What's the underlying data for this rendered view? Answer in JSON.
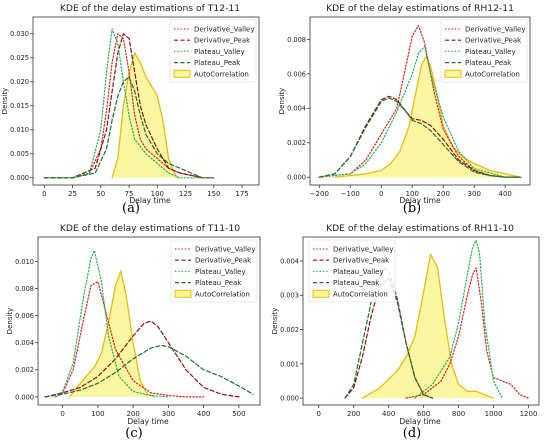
{
  "figure_labels": [
    "(a)",
    "(b)",
    "(c)",
    "(d)"
  ],
  "colors": {
    "derivative_valley": "#e31a1c",
    "derivative_peak": "#8b1010",
    "plateau_valley": "#22b14c",
    "plateau_peak": "#1f6e2c",
    "autocorrelation": "#e8bc14",
    "autocorrelation_fill": "#fbf597"
  },
  "chart_data": [
    {
      "type": "area",
      "title": "KDE of the delay estimations of T12-11",
      "xlabel": "Delay time",
      "ylabel": "Density",
      "xlim": [
        -10,
        190
      ],
      "ylim": [
        -0.0015,
        0.0335
      ],
      "xticks": [
        0,
        25,
        50,
        75,
        100,
        125,
        150,
        175
      ],
      "yticks": [
        0.0,
        0.005,
        0.01,
        0.015,
        0.02,
        0.025,
        0.03
      ],
      "ytick_labels": [
        "0.000",
        "0.005",
        "0.010",
        "0.015",
        "0.020",
        "0.025",
        "0.030"
      ],
      "legend": "top-right",
      "series": [
        {
          "name": "Derivative_Valley",
          "style": "dotted",
          "color": "#e31a1c",
          "x": [
            0,
            25,
            40,
            50,
            55,
            60,
            65,
            70,
            75,
            80,
            85,
            90,
            100,
            110,
            120,
            140,
            150
          ],
          "y": [
            0,
            0,
            0.001,
            0.006,
            0.014,
            0.024,
            0.03,
            0.029,
            0.022,
            0.013,
            0.008,
            0.006,
            0.004,
            0.002,
            0.001,
            0,
            0
          ]
        },
        {
          "name": "Derivative_Peak",
          "style": "dashed",
          "color": "#8b1010",
          "x": [
            0,
            25,
            45,
            55,
            60,
            65,
            70,
            75,
            80,
            85,
            90,
            100,
            110,
            120,
            140
          ],
          "y": [
            0,
            0,
            0.002,
            0.01,
            0.018,
            0.026,
            0.03,
            0.029,
            0.022,
            0.015,
            0.011,
            0.006,
            0.002,
            0.001,
            0
          ]
        },
        {
          "name": "Plateau_Valley",
          "style": "dotted",
          "color": "#22b14c",
          "x": [
            0,
            25,
            40,
            50,
            55,
            60,
            65,
            70,
            75,
            80,
            90,
            100,
            110,
            120,
            140
          ],
          "y": [
            0,
            0,
            0.001,
            0.01,
            0.022,
            0.031,
            0.028,
            0.02,
            0.013,
            0.008,
            0.005,
            0.003,
            0.001,
            0,
            0
          ]
        },
        {
          "name": "Plateau_Peak",
          "style": "dashed",
          "color": "#1f6e2c",
          "x": [
            0,
            25,
            45,
            55,
            60,
            65,
            70,
            75,
            80,
            85,
            90,
            100,
            110,
            120,
            130,
            140,
            150
          ],
          "y": [
            0,
            0,
            0.001,
            0.006,
            0.012,
            0.017,
            0.02,
            0.021,
            0.018,
            0.013,
            0.009,
            0.005,
            0.003,
            0.002,
            0.001,
            0,
            0
          ]
        },
        {
          "name": "AutoCorrelation",
          "style": "solid",
          "fill": true,
          "color": "#e8bc14",
          "x": [
            60,
            65,
            70,
            75,
            80,
            85,
            90,
            95,
            100,
            105,
            110,
            115,
            118
          ],
          "y": [
            0,
            0.004,
            0.015,
            0.022,
            0.026,
            0.024,
            0.021,
            0.019,
            0.017,
            0.012,
            0.004,
            0.001,
            0
          ]
        }
      ]
    },
    {
      "type": "area",
      "title": "KDE of the delay estimations of RH12-11",
      "xlabel": "Delay time",
      "ylabel": "Density",
      "xlim": [
        -230,
        480
      ],
      "ylim": [
        -0.00045,
        0.0093
      ],
      "xticks": [
        -200,
        -100,
        0,
        100,
        200,
        300,
        400
      ],
      "yticks": [
        0.0,
        0.002,
        0.004,
        0.006,
        0.008
      ],
      "ytick_labels": [
        "0.000",
        "0.002",
        "0.004",
        "0.006",
        "0.008"
      ],
      "legend": "top-right",
      "series": [
        {
          "name": "Derivative_Valley",
          "style": "dotted",
          "color": "#e31a1c",
          "x": [
            -200,
            -100,
            -50,
            0,
            50,
            80,
            100,
            120,
            140,
            170,
            200,
            250,
            300,
            350,
            400,
            450
          ],
          "y": [
            0,
            0.0002,
            0.001,
            0.0025,
            0.004,
            0.0065,
            0.0082,
            0.0088,
            0.0078,
            0.005,
            0.0028,
            0.0012,
            0.0004,
            0.0001,
            0,
            0
          ]
        },
        {
          "name": "Derivative_Peak",
          "style": "dashed",
          "color": "#8b1010",
          "x": [
            -200,
            -150,
            -100,
            -50,
            0,
            25,
            50,
            80,
            100,
            130,
            160,
            200,
            250,
            300,
            350,
            400,
            450
          ],
          "y": [
            0,
            0.0002,
            0.0012,
            0.003,
            0.0045,
            0.0047,
            0.0045,
            0.0038,
            0.0034,
            0.0033,
            0.003,
            0.0022,
            0.001,
            0.0004,
            0.0001,
            0,
            0
          ]
        },
        {
          "name": "Plateau_Valley",
          "style": "dotted",
          "color": "#22b14c",
          "x": [
            -200,
            -100,
            -50,
            0,
            50,
            100,
            120,
            140,
            160,
            200,
            250,
            300,
            400,
            450
          ],
          "y": [
            0,
            0.0002,
            0.0008,
            0.002,
            0.0038,
            0.006,
            0.0072,
            0.0076,
            0.006,
            0.0035,
            0.0015,
            0.0005,
            0,
            0
          ]
        },
        {
          "name": "Plateau_Peak",
          "style": "dashed",
          "color": "#1f6e2c",
          "x": [
            -200,
            -150,
            -100,
            -50,
            0,
            25,
            50,
            80,
            100,
            130,
            160,
            200,
            250,
            300,
            350,
            400,
            450
          ],
          "y": [
            0,
            0.0002,
            0.0012,
            0.0029,
            0.0044,
            0.0046,
            0.0044,
            0.0038,
            0.0033,
            0.0031,
            0.0027,
            0.0019,
            0.0009,
            0.0003,
            0.0001,
            0,
            0
          ]
        },
        {
          "name": "AutoCorrelation",
          "style": "solid",
          "fill": true,
          "color": "#e8bc14",
          "x": [
            -150,
            -100,
            -50,
            0,
            30,
            60,
            90,
            110,
            130,
            145,
            160,
            180,
            200,
            230,
            260,
            300,
            350,
            400,
            450
          ],
          "y": [
            0,
            0.0001,
            0.0002,
            0.0004,
            0.0008,
            0.0015,
            0.003,
            0.0048,
            0.0065,
            0.007,
            0.0064,
            0.0048,
            0.003,
            0.0018,
            0.0012,
            0.0008,
            0.0004,
            0.0002,
            0
          ]
        }
      ]
    },
    {
      "type": "area",
      "title": "KDE of the delay estimations of T11-10",
      "xlabel": "Delay time",
      "ylabel": "Density",
      "xlim": [
        -70,
        560
      ],
      "ylim": [
        -0.0006,
        0.0118
      ],
      "xticks": [
        0,
        100,
        200,
        300,
        400,
        500
      ],
      "yticks": [
        0.0,
        0.002,
        0.004,
        0.006,
        0.008,
        0.01
      ],
      "ytick_labels": [
        "0.000",
        "0.002",
        "0.004",
        "0.006",
        "0.008",
        "0.010"
      ],
      "legend": "top-right",
      "series": [
        {
          "name": "Derivative_Valley",
          "style": "dotted",
          "color": "#e31a1c",
          "x": [
            -20,
            0,
            30,
            60,
            80,
            100,
            120,
            150,
            200,
            250,
            300,
            350,
            400
          ],
          "y": [
            0,
            0.0003,
            0.002,
            0.0058,
            0.0082,
            0.0085,
            0.0065,
            0.0035,
            0.0012,
            0.0003,
            0.0001,
            0,
            0
          ]
        },
        {
          "name": "Derivative_Peak",
          "style": "dashed",
          "color": "#8b1010",
          "x": [
            -50,
            0,
            50,
            100,
            150,
            200,
            230,
            250,
            270,
            300,
            350,
            400,
            450,
            500
          ],
          "y": [
            0,
            0.0003,
            0.0007,
            0.0015,
            0.0028,
            0.0045,
            0.0054,
            0.0056,
            0.0052,
            0.004,
            0.002,
            0.0007,
            0.0002,
            0
          ]
        },
        {
          "name": "Plateau_Valley",
          "style": "dotted",
          "color": "#22b14c",
          "x": [
            -20,
            0,
            30,
            60,
            80,
            90,
            110,
            130,
            160,
            200,
            250,
            300
          ],
          "y": [
            0,
            0.0004,
            0.0025,
            0.0075,
            0.0102,
            0.0108,
            0.0085,
            0.0045,
            0.0015,
            0.0004,
            0.0001,
            0
          ]
        },
        {
          "name": "Plateau_Peak",
          "style": "dashed",
          "color": "#1f6e2c",
          "x": [
            -50,
            0,
            50,
            100,
            150,
            200,
            250,
            280,
            300,
            350,
            400,
            450,
            500,
            540
          ],
          "y": [
            0,
            0.0002,
            0.0005,
            0.001,
            0.0018,
            0.0028,
            0.0036,
            0.0038,
            0.0037,
            0.003,
            0.002,
            0.0015,
            0.0008,
            0.0002
          ]
        },
        {
          "name": "AutoCorrelation",
          "style": "solid",
          "fill": true,
          "color": "#e8bc14",
          "x": [
            20,
            50,
            70,
            90,
            110,
            130,
            150,
            165,
            180,
            200,
            220,
            240,
            260
          ],
          "y": [
            0,
            0.001,
            0.0016,
            0.0022,
            0.0032,
            0.0055,
            0.0082,
            0.0093,
            0.0075,
            0.004,
            0.0012,
            0.0002,
            0
          ]
        }
      ]
    },
    {
      "type": "area",
      "title": "KDE of the delay estimations of RH11-10",
      "xlabel": "Delay time",
      "ylabel": "Density",
      "xlim": [
        -90,
        1260
      ],
      "ylim": [
        -0.0002,
        0.0047
      ],
      "xticks": [
        0,
        200,
        400,
        600,
        800,
        1000,
        1200
      ],
      "yticks": [
        0.0,
        0.001,
        0.002,
        0.003,
        0.004
      ],
      "ytick_labels": [
        "0.000",
        "0.001",
        "0.002",
        "0.003",
        "0.004"
      ],
      "legend": "top-left",
      "series": [
        {
          "name": "Derivative_Valley",
          "style": "dotted",
          "color": "#e31a1c",
          "x": [
            500,
            600,
            700,
            750,
            800,
            850,
            880,
            900,
            930,
            960,
            1000,
            1050,
            1100,
            1150,
            1200
          ],
          "y": [
            0,
            0.0001,
            0.0005,
            0.001,
            0.0018,
            0.003,
            0.0036,
            0.0038,
            0.0028,
            0.0014,
            0.0006,
            0.0005,
            0.0004,
            0.0001,
            0
          ]
        },
        {
          "name": "Derivative_Peak",
          "style": "dashed",
          "color": "#8b1010",
          "x": [
            150,
            200,
            250,
            300,
            350,
            400,
            450,
            500,
            550,
            600,
            650
          ],
          "y": [
            0,
            0.0003,
            0.0012,
            0.0024,
            0.0033,
            0.0035,
            0.0028,
            0.0016,
            0.0006,
            0.0001,
            0
          ]
        },
        {
          "name": "Plateau_Valley",
          "style": "dotted",
          "color": "#22b14c",
          "x": [
            550,
            650,
            750,
            800,
            850,
            880,
            900,
            920,
            950,
            1000,
            1050
          ],
          "y": [
            0,
            0.0004,
            0.0012,
            0.0022,
            0.0036,
            0.0044,
            0.0046,
            0.0042,
            0.0022,
            0.0005,
            0
          ]
        },
        {
          "name": "Plateau_Peak",
          "style": "dashed",
          "color": "#1f6e2c",
          "x": [
            150,
            200,
            250,
            300,
            350,
            380,
            400,
            450,
            500,
            550,
            600,
            650
          ],
          "y": [
            0,
            0.0004,
            0.0016,
            0.0028,
            0.0036,
            0.0038,
            0.0037,
            0.0029,
            0.0016,
            0.0006,
            0.0001,
            0
          ]
        },
        {
          "name": "AutoCorrelation",
          "style": "solid",
          "fill": true,
          "color": "#e8bc14",
          "x": [
            250,
            350,
            450,
            500,
            550,
            600,
            640,
            680,
            720,
            760,
            800,
            850,
            900,
            950,
            1000
          ],
          "y": [
            0,
            0.0003,
            0.0008,
            0.0012,
            0.0018,
            0.0031,
            0.0042,
            0.0038,
            0.0023,
            0.001,
            0.0004,
            0.0002,
            0.0002,
            0.0001,
            0
          ]
        }
      ]
    }
  ]
}
